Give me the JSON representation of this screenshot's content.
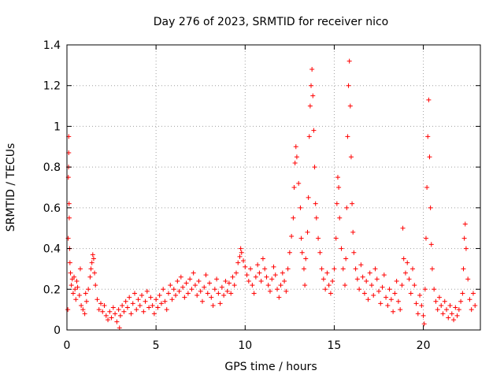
{
  "chart_data": {
    "type": "scatter",
    "title": "Day 276 of 2023, SRMTID for receiver nico",
    "xlabel": "GPS time / hours",
    "ylabel": "SRMTID / TECUs",
    "xlim": [
      0,
      23.2
    ],
    "ylim": [
      0,
      1.4
    ],
    "xticks": [
      0,
      5,
      10,
      15,
      20
    ],
    "xtick_labels": [
      "0",
      "5",
      "10",
      "15",
      "20"
    ],
    "yticks": [
      0,
      0.2,
      0.4,
      0.6,
      0.8,
      1.0,
      1.2,
      1.4
    ],
    "ytick_labels": [
      "0",
      "0.2",
      "0.4",
      "0.6",
      "0.8",
      "1",
      "1.2",
      "1.4"
    ],
    "grid": true,
    "marker": "+",
    "series": [
      {
        "name": "SRMTID",
        "color": "#ff0000",
        "points": [
          [
            0.05,
            0.1
          ],
          [
            0.07,
            0.45
          ],
          [
            0.08,
            0.75
          ],
          [
            0.09,
            0.8
          ],
          [
            0.1,
            0.95
          ],
          [
            0.1,
            0.87
          ],
          [
            0.12,
            0.62
          ],
          [
            0.13,
            0.55
          ],
          [
            0.15,
            0.4
          ],
          [
            0.17,
            0.33
          ],
          [
            0.2,
            0.28
          ],
          [
            0.25,
            0.22
          ],
          [
            0.3,
            0.25
          ],
          [
            0.35,
            0.18
          ],
          [
            0.4,
            0.26
          ],
          [
            0.45,
            0.2
          ],
          [
            0.5,
            0.15
          ],
          [
            0.55,
            0.24
          ],
          [
            0.6,
            0.21
          ],
          [
            0.7,
            0.17
          ],
          [
            0.75,
            0.3
          ],
          [
            0.8,
            0.12
          ],
          [
            0.9,
            0.1
          ],
          [
            1.0,
            0.08
          ],
          [
            1.05,
            0.18
          ],
          [
            1.1,
            0.14
          ],
          [
            1.2,
            0.2
          ],
          [
            1.3,
            0.26
          ],
          [
            1.35,
            0.3
          ],
          [
            1.4,
            0.33
          ],
          [
            1.45,
            0.37
          ],
          [
            1.5,
            0.35
          ],
          [
            1.55,
            0.28
          ],
          [
            1.6,
            0.22
          ],
          [
            1.7,
            0.15
          ],
          [
            1.8,
            0.1
          ],
          [
            1.9,
            0.13
          ],
          [
            2.0,
            0.09
          ],
          [
            2.1,
            0.12
          ],
          [
            2.2,
            0.07
          ],
          [
            2.3,
            0.05
          ],
          [
            2.4,
            0.09
          ],
          [
            2.5,
            0.06
          ],
          [
            2.6,
            0.11
          ],
          [
            2.7,
            0.08
          ],
          [
            2.8,
            0.04
          ],
          [
            2.9,
            0.1
          ],
          [
            2.95,
            0.01
          ],
          [
            3.0,
            0.07
          ],
          [
            3.1,
            0.12
          ],
          [
            3.2,
            0.09
          ],
          [
            3.3,
            0.14
          ],
          [
            3.4,
            0.11
          ],
          [
            3.5,
            0.16
          ],
          [
            3.6,
            0.08
          ],
          [
            3.7,
            0.13
          ],
          [
            3.8,
            0.18
          ],
          [
            3.9,
            0.1
          ],
          [
            4.0,
            0.15
          ],
          [
            4.1,
            0.12
          ],
          [
            4.2,
            0.17
          ],
          [
            4.3,
            0.09
          ],
          [
            4.4,
            0.14
          ],
          [
            4.5,
            0.19
          ],
          [
            4.6,
            0.11
          ],
          [
            4.7,
            0.16
          ],
          [
            4.8,
            0.12
          ],
          [
            4.9,
            0.08
          ],
          [
            5.0,
            0.15
          ],
          [
            5.1,
            0.11
          ],
          [
            5.2,
            0.17
          ],
          [
            5.3,
            0.13
          ],
          [
            5.4,
            0.2
          ],
          [
            5.5,
            0.14
          ],
          [
            5.6,
            0.1
          ],
          [
            5.7,
            0.18
          ],
          [
            5.8,
            0.22
          ],
          [
            5.9,
            0.15
          ],
          [
            6.0,
            0.2
          ],
          [
            6.1,
            0.17
          ],
          [
            6.2,
            0.24
          ],
          [
            6.3,
            0.19
          ],
          [
            6.4,
            0.26
          ],
          [
            6.5,
            0.21
          ],
          [
            6.6,
            0.16
          ],
          [
            6.7,
            0.23
          ],
          [
            6.8,
            0.18
          ],
          [
            6.9,
            0.25
          ],
          [
            7.0,
            0.2
          ],
          [
            7.1,
            0.28
          ],
          [
            7.2,
            0.22
          ],
          [
            7.3,
            0.17
          ],
          [
            7.4,
            0.24
          ],
          [
            7.5,
            0.19
          ],
          [
            7.6,
            0.14
          ],
          [
            7.7,
            0.21
          ],
          [
            7.8,
            0.27
          ],
          [
            7.9,
            0.18
          ],
          [
            8.0,
            0.23
          ],
          [
            8.1,
            0.16
          ],
          [
            8.2,
            0.12
          ],
          [
            8.3,
            0.2
          ],
          [
            8.4,
            0.25
          ],
          [
            8.5,
            0.18
          ],
          [
            8.6,
            0.13
          ],
          [
            8.7,
            0.21
          ],
          [
            8.8,
            0.17
          ],
          [
            8.9,
            0.24
          ],
          [
            9.0,
            0.19
          ],
          [
            9.1,
            0.23
          ],
          [
            9.2,
            0.18
          ],
          [
            9.3,
            0.26
          ],
          [
            9.4,
            0.22
          ],
          [
            9.5,
            0.28
          ],
          [
            9.6,
            0.33
          ],
          [
            9.7,
            0.36
          ],
          [
            9.75,
            0.4
          ],
          [
            9.8,
            0.38
          ],
          [
            9.9,
            0.34
          ],
          [
            10.0,
            0.31
          ],
          [
            10.1,
            0.27
          ],
          [
            10.2,
            0.24
          ],
          [
            10.3,
            0.3
          ],
          [
            10.4,
            0.22
          ],
          [
            10.5,
            0.18
          ],
          [
            10.6,
            0.26
          ],
          [
            10.7,
            0.32
          ],
          [
            10.8,
            0.28
          ],
          [
            10.9,
            0.24
          ],
          [
            11.0,
            0.35
          ],
          [
            11.1,
            0.3
          ],
          [
            11.2,
            0.26
          ],
          [
            11.3,
            0.22
          ],
          [
            11.4,
            0.19
          ],
          [
            11.5,
            0.25
          ],
          [
            11.6,
            0.31
          ],
          [
            11.7,
            0.27
          ],
          [
            11.8,
            0.2
          ],
          [
            11.9,
            0.16
          ],
          [
            12.0,
            0.22
          ],
          [
            12.1,
            0.28
          ],
          [
            12.2,
            0.24
          ],
          [
            12.3,
            0.19
          ],
          [
            12.4,
            0.3
          ],
          [
            12.5,
            0.38
          ],
          [
            12.6,
            0.46
          ],
          [
            12.7,
            0.55
          ],
          [
            12.75,
            0.7
          ],
          [
            12.8,
            0.82
          ],
          [
            12.85,
            0.9
          ],
          [
            12.9,
            0.85
          ],
          [
            13.0,
            0.72
          ],
          [
            13.1,
            0.6
          ],
          [
            13.15,
            0.45
          ],
          [
            13.2,
            0.38
          ],
          [
            13.3,
            0.3
          ],
          [
            13.35,
            0.22
          ],
          [
            13.4,
            0.35
          ],
          [
            13.5,
            0.48
          ],
          [
            13.55,
            0.65
          ],
          [
            13.6,
            0.95
          ],
          [
            13.65,
            1.1
          ],
          [
            13.7,
            1.2
          ],
          [
            13.75,
            1.28
          ],
          [
            13.8,
            1.15
          ],
          [
            13.85,
            0.98
          ],
          [
            13.9,
            0.8
          ],
          [
            13.95,
            0.62
          ],
          [
            14.0,
            0.55
          ],
          [
            14.1,
            0.45
          ],
          [
            14.2,
            0.38
          ],
          [
            14.3,
            0.3
          ],
          [
            14.4,
            0.25
          ],
          [
            14.5,
            0.2
          ],
          [
            14.6,
            0.28
          ],
          [
            14.7,
            0.22
          ],
          [
            14.8,
            0.18
          ],
          [
            14.9,
            0.24
          ],
          [
            15.0,
            0.3
          ],
          [
            15.1,
            0.45
          ],
          [
            15.15,
            0.62
          ],
          [
            15.2,
            0.75
          ],
          [
            15.25,
            0.7
          ],
          [
            15.3,
            0.55
          ],
          [
            15.4,
            0.4
          ],
          [
            15.5,
            0.3
          ],
          [
            15.6,
            0.22
          ],
          [
            15.65,
            0.35
          ],
          [
            15.7,
            0.6
          ],
          [
            15.75,
            0.95
          ],
          [
            15.8,
            1.2
          ],
          [
            15.85,
            1.32
          ],
          [
            15.9,
            1.1
          ],
          [
            15.95,
            0.85
          ],
          [
            16.0,
            0.62
          ],
          [
            16.05,
            0.48
          ],
          [
            16.1,
            0.38
          ],
          [
            16.2,
            0.3
          ],
          [
            16.3,
            0.25
          ],
          [
            16.4,
            0.2
          ],
          [
            16.5,
            0.32
          ],
          [
            16.6,
            0.26
          ],
          [
            16.7,
            0.18
          ],
          [
            16.8,
            0.24
          ],
          [
            16.9,
            0.15
          ],
          [
            17.0,
            0.28
          ],
          [
            17.1,
            0.22
          ],
          [
            17.2,
            0.17
          ],
          [
            17.3,
            0.3
          ],
          [
            17.4,
            0.25
          ],
          [
            17.5,
            0.19
          ],
          [
            17.6,
            0.13
          ],
          [
            17.7,
            0.21
          ],
          [
            17.8,
            0.27
          ],
          [
            17.9,
            0.16
          ],
          [
            18.0,
            0.12
          ],
          [
            18.1,
            0.2
          ],
          [
            18.2,
            0.15
          ],
          [
            18.3,
            0.09
          ],
          [
            18.4,
            0.18
          ],
          [
            18.5,
            0.24
          ],
          [
            18.6,
            0.14
          ],
          [
            18.7,
            0.1
          ],
          [
            18.8,
            0.22
          ],
          [
            18.85,
            0.5
          ],
          [
            18.9,
            0.35
          ],
          [
            19.0,
            0.28
          ],
          [
            19.1,
            0.33
          ],
          [
            19.2,
            0.25
          ],
          [
            19.3,
            0.18
          ],
          [
            19.4,
            0.3
          ],
          [
            19.5,
            0.22
          ],
          [
            19.6,
            0.13
          ],
          [
            19.7,
            0.08
          ],
          [
            19.8,
            0.17
          ],
          [
            19.9,
            0.12
          ],
          [
            20.0,
            0.07
          ],
          [
            20.05,
            0.03
          ],
          [
            20.1,
            0.2
          ],
          [
            20.15,
            0.45
          ],
          [
            20.2,
            0.7
          ],
          [
            20.25,
            0.95
          ],
          [
            20.3,
            1.13
          ],
          [
            20.35,
            0.85
          ],
          [
            20.4,
            0.6
          ],
          [
            20.45,
            0.42
          ],
          [
            20.5,
            0.3
          ],
          [
            20.6,
            0.2
          ],
          [
            20.7,
            0.14
          ],
          [
            20.8,
            0.1
          ],
          [
            20.9,
            0.16
          ],
          [
            21.0,
            0.12
          ],
          [
            21.1,
            0.08
          ],
          [
            21.2,
            0.14
          ],
          [
            21.3,
            0.1
          ],
          [
            21.4,
            0.06
          ],
          [
            21.5,
            0.12
          ],
          [
            21.6,
            0.08
          ],
          [
            21.7,
            0.05
          ],
          [
            21.8,
            0.11
          ],
          [
            21.9,
            0.07
          ],
          [
            22.0,
            0.1
          ],
          [
            22.1,
            0.14
          ],
          [
            22.2,
            0.18
          ],
          [
            22.25,
            0.3
          ],
          [
            22.3,
            0.45
          ],
          [
            22.35,
            0.52
          ],
          [
            22.4,
            0.4
          ],
          [
            22.5,
            0.25
          ],
          [
            22.6,
            0.15
          ],
          [
            22.7,
            0.1
          ],
          [
            22.8,
            0.18
          ],
          [
            22.9,
            0.12
          ]
        ]
      }
    ]
  }
}
